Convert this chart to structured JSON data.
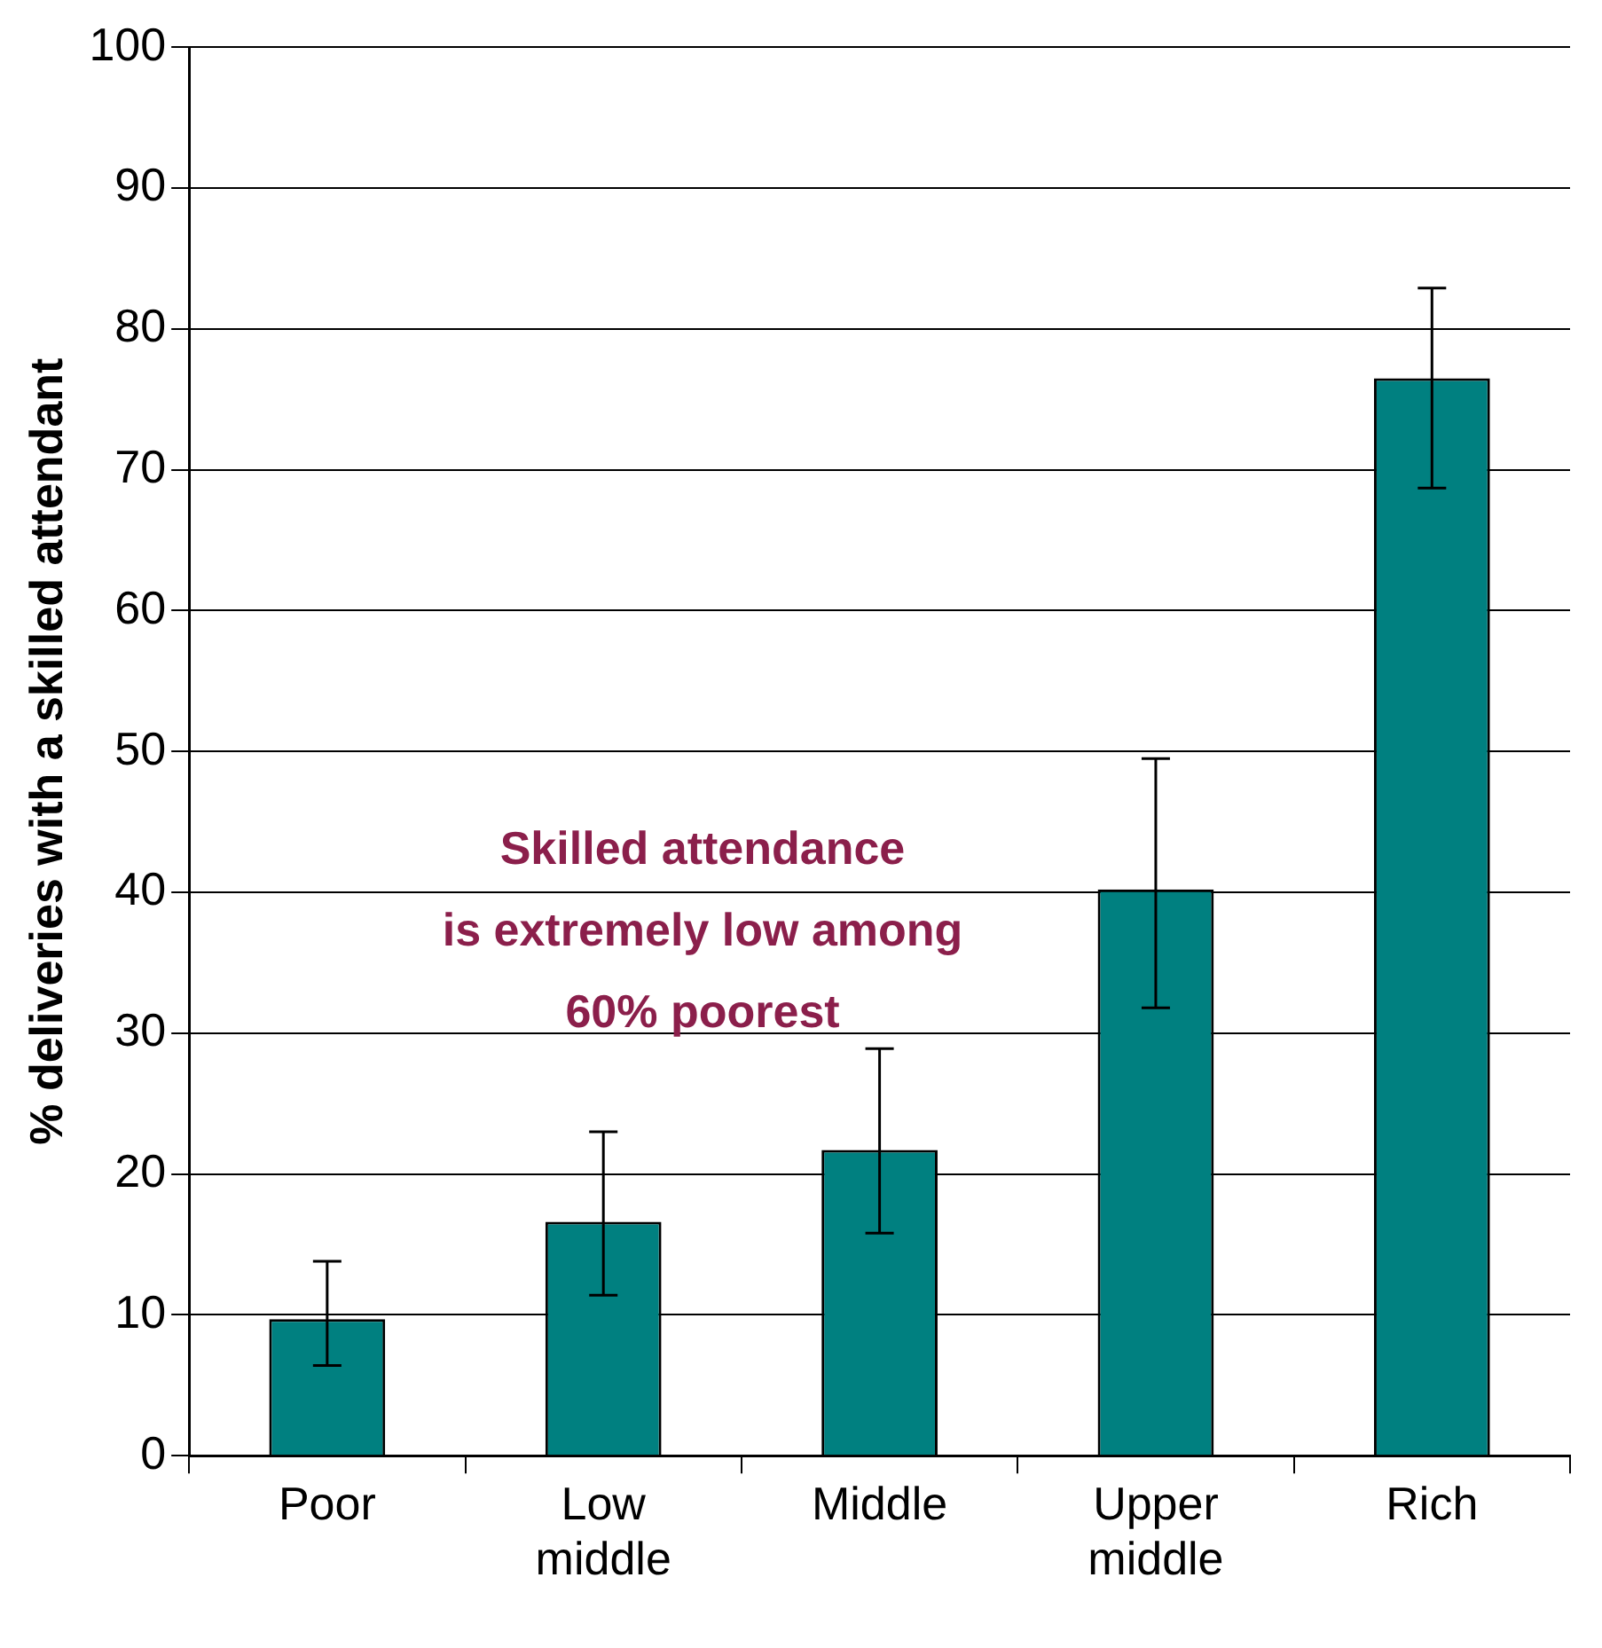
{
  "chart_data": {
    "type": "bar",
    "ylabel": "% deliveries with a skilled attendant",
    "categories": [
      "Poor",
      "Low middle",
      "Middle",
      "Upper middle",
      "Rich"
    ],
    "values": [
      9.7,
      16.6,
      21.7,
      40.2,
      76.5
    ],
    "errors": [
      [
        6.4,
        13.8
      ],
      [
        11.4,
        23.0
      ],
      [
        15.8,
        28.9
      ],
      [
        31.8,
        49.5
      ],
      [
        68.7,
        82.9
      ]
    ],
    "color": "#008080",
    "ylim": [
      0,
      100
    ],
    "yticks": [
      0,
      10,
      20,
      30,
      40,
      50,
      60,
      70,
      80,
      90,
      100
    ],
    "grid": "y",
    "legend": false,
    "annotations": [
      "Skilled attendance",
      "is extremely low among",
      "60% poorest"
    ]
  }
}
